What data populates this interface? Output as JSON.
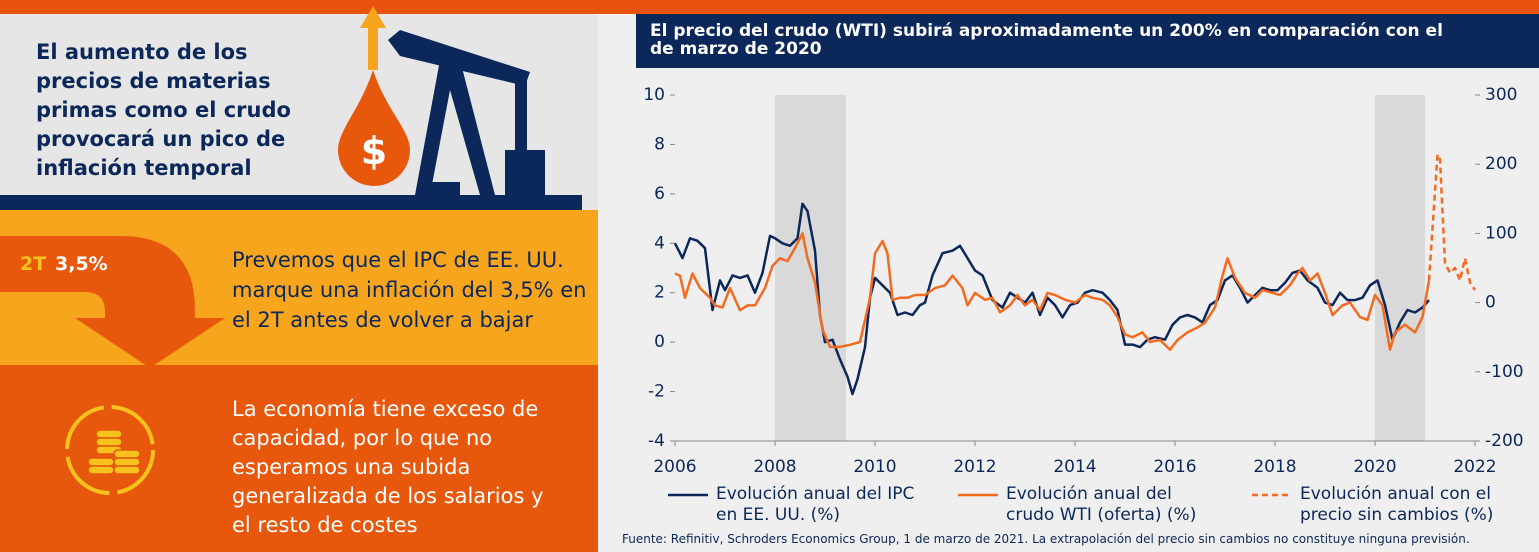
{
  "header": {
    "headline": "El aumento de los precios de materias primas como el crudo provocará un pico de inflación temporal",
    "icon_text": "$"
  },
  "forecast": {
    "quarter": "2T",
    "rate": "3,5%",
    "text": "Prevemos que el IPC de EE. UU. marque una inflación del 3,5% en el 2T antes de volver a bajar"
  },
  "capacity": {
    "text": "La economía tiene exceso de capacidad, por lo que no esperamos una subida generalizada de los salarios y el resto de costes"
  },
  "chart_data": {
    "type": "line",
    "title": "El precio del crudo (WTI) subirá aproximadamente un 200% en comparación con el de marzo de 2020",
    "source": "Fuente: Refinitiv, Schroders Economics Group, 1 de marzo de 2021. La extrapolación del precio sin cambios no constituye ninguna previsión.",
    "xlim": [
      2006,
      2022
    ],
    "xticks": [
      2006,
      2008,
      2010,
      2012,
      2014,
      2016,
      2018,
      2020,
      2022
    ],
    "ylim": [
      -4,
      10
    ],
    "yticks": [
      -4,
      -2,
      0,
      2,
      4,
      6,
      8,
      10
    ],
    "y2lim": [
      -200,
      300
    ],
    "y2ticks": [
      -200,
      -100,
      0,
      100,
      200,
      300
    ],
    "shaded_ranges": [
      [
        2008.0,
        2009.42
      ],
      [
        2020.0,
        2021.0
      ]
    ],
    "shade_color": "#d9d9d9",
    "series": [
      {
        "name": "Evolución anual del IPC en EE. UU. (%)",
        "color": "#0c2759",
        "axis": "y",
        "dashed": false,
        "x": [
          2006.0,
          2006.15,
          2006.3,
          2006.45,
          2006.6,
          2006.75,
          2006.9,
          2007.0,
          2007.15,
          2007.3,
          2007.45,
          2007.6,
          2007.75,
          2007.9,
          2008.0,
          2008.15,
          2008.3,
          2008.45,
          2008.55,
          2008.65,
          2008.8,
          2008.9,
          2009.0,
          2009.15,
          2009.3,
          2009.45,
          2009.55,
          2009.65,
          2009.8,
          2009.9,
          2010.0,
          2010.15,
          2010.3,
          2010.45,
          2010.6,
          2010.75,
          2010.9,
          2011.0,
          2011.15,
          2011.35,
          2011.55,
          2011.7,
          2011.85,
          2012.0,
          2012.15,
          2012.35,
          2012.55,
          2012.7,
          2012.85,
          2013.0,
          2013.15,
          2013.3,
          2013.45,
          2013.6,
          2013.75,
          2013.9,
          2014.05,
          2014.2,
          2014.35,
          2014.55,
          2014.7,
          2014.85,
          2015.0,
          2015.15,
          2015.3,
          2015.45,
          2015.6,
          2015.8,
          2015.95,
          2016.1,
          2016.25,
          2016.4,
          2016.55,
          2016.7,
          2016.85,
          2017.0,
          2017.15,
          2017.3,
          2017.45,
          2017.6,
          2017.75,
          2017.9,
          2018.05,
          2018.2,
          2018.35,
          2018.5,
          2018.65,
          2018.85,
          2019.0,
          2019.15,
          2019.3,
          2019.45,
          2019.6,
          2019.75,
          2019.9,
          2020.05,
          2020.2,
          2020.35,
          2020.5,
          2020.65,
          2020.8,
          2020.95,
          2021.08
        ],
        "values": [
          4.0,
          3.4,
          4.2,
          4.1,
          3.8,
          1.3,
          2.5,
          2.1,
          2.7,
          2.6,
          2.7,
          2.0,
          2.8,
          4.3,
          4.2,
          4.0,
          3.9,
          4.2,
          5.6,
          5.3,
          3.7,
          1.1,
          0.0,
          0.1,
          -0.7,
          -1.4,
          -2.1,
          -1.5,
          -0.2,
          1.8,
          2.6,
          2.3,
          2.0,
          1.1,
          1.2,
          1.1,
          1.5,
          1.6,
          2.7,
          3.6,
          3.7,
          3.9,
          3.4,
          2.9,
          2.7,
          1.7,
          1.4,
          2.0,
          1.8,
          1.6,
          2.0,
          1.1,
          1.8,
          1.5,
          1.0,
          1.5,
          1.6,
          2.0,
          2.1,
          2.0,
          1.7,
          1.3,
          -0.1,
          -0.1,
          -0.2,
          0.1,
          0.2,
          0.1,
          0.7,
          1.0,
          1.1,
          1.0,
          0.8,
          1.5,
          1.7,
          2.5,
          2.7,
          2.2,
          1.6,
          1.9,
          2.2,
          2.1,
          2.1,
          2.4,
          2.8,
          2.9,
          2.5,
          2.2,
          1.6,
          1.5,
          2.0,
          1.7,
          1.7,
          1.8,
          2.3,
          2.5,
          1.5,
          0.1,
          0.8,
          1.3,
          1.2,
          1.4,
          1.7
        ]
      },
      {
        "name": "Evolución anual del crudo WTI (oferta) (%)",
        "color": "#f26b21",
        "axis": "y2",
        "dashed": false,
        "x": [
          2006.0,
          2006.1,
          2006.2,
          2006.35,
          2006.5,
          2006.7,
          2006.8,
          2006.95,
          2007.1,
          2007.3,
          2007.45,
          2007.6,
          2007.8,
          2007.95,
          2008.1,
          2008.25,
          2008.4,
          2008.55,
          2008.65,
          2008.8,
          2008.95,
          2009.1,
          2009.3,
          2009.5,
          2009.7,
          2009.9,
          2010.0,
          2010.15,
          2010.25,
          2010.35,
          2010.5,
          2010.65,
          2010.8,
          2011.0,
          2011.2,
          2011.4,
          2011.55,
          2011.75,
          2011.85,
          2012.0,
          2012.2,
          2012.35,
          2012.5,
          2012.7,
          2012.85,
          2013.0,
          2013.15,
          2013.3,
          2013.45,
          2013.6,
          2013.8,
          2014.0,
          2014.2,
          2014.35,
          2014.55,
          2014.7,
          2014.85,
          2015.0,
          2015.15,
          2015.35,
          2015.5,
          2015.7,
          2015.9,
          2016.05,
          2016.25,
          2016.45,
          2016.6,
          2016.8,
          2016.95,
          2017.05,
          2017.2,
          2017.4,
          2017.6,
          2017.75,
          2017.95,
          2018.1,
          2018.3,
          2018.45,
          2018.55,
          2018.7,
          2018.85,
          2019.0,
          2019.15,
          2019.35,
          2019.5,
          2019.7,
          2019.85,
          2020.0,
          2020.15,
          2020.3,
          2020.4,
          2020.6,
          2020.8,
          2020.95,
          2021.08
        ],
        "values": [
          42,
          39,
          7,
          42,
          21,
          7,
          -4,
          -7,
          21,
          -11,
          -4,
          -4,
          21,
          53,
          64,
          60,
          79,
          100,
          64,
          29,
          -39,
          -64,
          -64,
          -61,
          -57,
          7,
          71,
          89,
          71,
          4,
          7,
          7,
          11,
          11,
          21,
          25,
          39,
          21,
          -4,
          14,
          4,
          7,
          -14,
          -4,
          11,
          -4,
          4,
          -11,
          14,
          11,
          4,
          0,
          11,
          7,
          4,
          -4,
          -21,
          -46,
          -50,
          -43,
          -57,
          -54,
          -68,
          -54,
          -43,
          -36,
          -29,
          -7,
          39,
          64,
          36,
          14,
          7,
          18,
          14,
          11,
          25,
          42,
          50,
          32,
          42,
          14,
          -18,
          -4,
          0,
          -21,
          -25,
          11,
          -4,
          -68,
          -43,
          -32,
          -43,
          -21,
          32
        ]
      },
      {
        "name": "Evolución anual con el precio sin cambios (%)",
        "color": "#f26b21",
        "axis": "y2",
        "dashed": true,
        "x": [
          2021.08,
          2021.25,
          2021.3,
          2021.4,
          2021.5,
          2021.6,
          2021.7,
          2021.8,
          2021.9,
          2022.0
        ],
        "values": [
          32,
          214,
          207,
          57,
          43,
          50,
          32,
          64,
          29,
          18
        ]
      }
    ]
  }
}
